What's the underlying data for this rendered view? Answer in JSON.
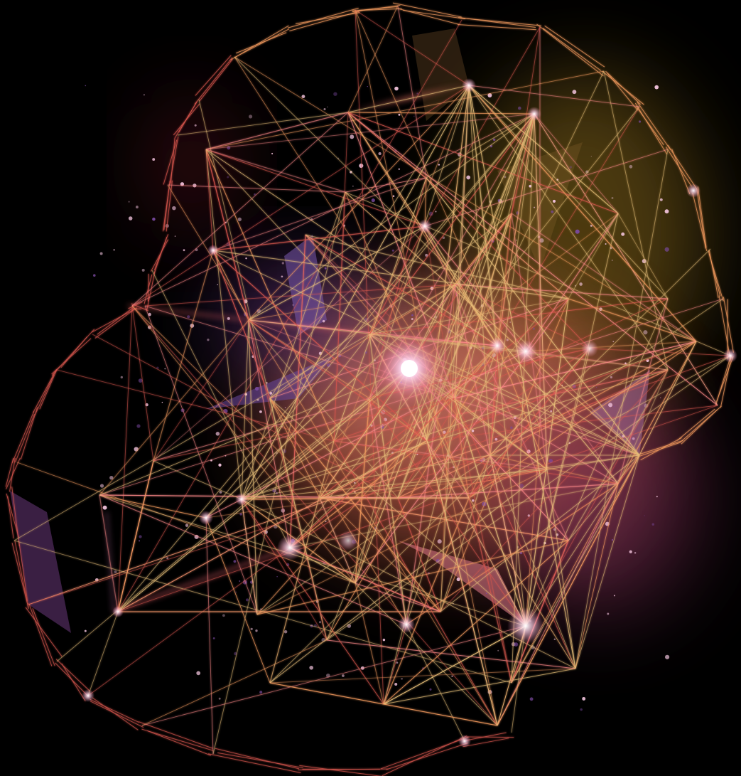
{
  "image": {
    "subject": "glowing-wireframe-network",
    "background_color": "#000000",
    "palette": {
      "core_glow": "#ffe6f6",
      "warm_glow": "#ff9a6a",
      "amber_glow": "#d9b34a",
      "magenta_glow": "#b0467a",
      "violet_glow": "#7a4aa0",
      "line_orange": "#f29a5e",
      "line_red": "#d9574e",
      "line_gold": "#e8c07a",
      "line_pink": "#ff8a8a",
      "particle": "#f5c6e0"
    }
  }
}
